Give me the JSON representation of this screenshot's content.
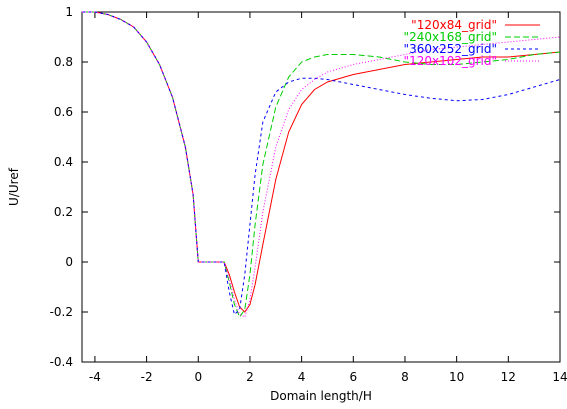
{
  "chart_data": {
    "type": "line",
    "xlabel": "Domain length/H",
    "ylabel": "U/Uref",
    "xlim": [
      -4.5,
      14
    ],
    "ylim": [
      -0.4,
      1
    ],
    "xticks": [
      -4,
      -2,
      0,
      2,
      4,
      6,
      8,
      10,
      12,
      14
    ],
    "yticks": [
      -0.4,
      -0.2,
      0,
      0.2,
      0.4,
      0.6,
      0.8,
      1
    ],
    "xtick_labels": [
      "-4",
      "-2",
      "0",
      "2",
      "4",
      "6",
      "8",
      "10",
      "12",
      "14"
    ],
    "ytick_labels": [
      "-0.4",
      "-0.2",
      "0",
      "0.2",
      "0.4",
      "0.6",
      "0.8",
      "1"
    ],
    "grid": false,
    "legend_position": "top-right",
    "series": [
      {
        "name": "\"120x84_grid\"",
        "color": "#ff0000",
        "dash": "solid",
        "x": [
          -4.5,
          -4,
          -3.5,
          -3,
          -2.5,
          -2,
          -1.5,
          -1,
          -0.5,
          -0.2,
          0,
          1,
          1.2,
          1.4,
          1.6,
          1.8,
          2.0,
          2.2,
          2.5,
          3,
          3.5,
          4,
          4.5,
          5,
          6,
          7,
          8,
          9,
          10,
          11,
          12,
          13,
          14
        ],
        "y": [
          1.0,
          1.0,
          0.99,
          0.97,
          0.94,
          0.88,
          0.79,
          0.66,
          0.46,
          0.27,
          0.0,
          0.0,
          -0.05,
          -0.12,
          -0.18,
          -0.2,
          -0.17,
          -0.09,
          0.07,
          0.33,
          0.52,
          0.63,
          0.69,
          0.72,
          0.75,
          0.77,
          0.79,
          0.8,
          0.81,
          0.82,
          0.82,
          0.83,
          0.84
        ]
      },
      {
        "name": "\"240x168_grid\"",
        "color": "#00cc00",
        "dash": "long",
        "x": [
          -4.5,
          -4,
          -3.5,
          -3,
          -2.5,
          -2,
          -1.5,
          -1,
          -0.5,
          -0.2,
          0,
          1,
          1.2,
          1.4,
          1.6,
          1.8,
          2.0,
          2.2,
          2.5,
          3,
          3.5,
          4,
          4.5,
          5,
          6,
          7,
          8,
          9,
          10,
          11,
          12,
          13,
          14
        ],
        "y": [
          1.0,
          1.0,
          0.99,
          0.97,
          0.94,
          0.88,
          0.79,
          0.66,
          0.46,
          0.27,
          0.0,
          0.0,
          -0.08,
          -0.17,
          -0.22,
          -0.19,
          -0.05,
          0.15,
          0.39,
          0.62,
          0.74,
          0.8,
          0.82,
          0.83,
          0.83,
          0.82,
          0.8,
          0.79,
          0.79,
          0.8,
          0.81,
          0.83,
          0.84
        ]
      },
      {
        "name": "\"360x252_grid\"",
        "color": "#0000ff",
        "dash": "short",
        "x": [
          -4.5,
          -4,
          -3.5,
          -3,
          -2.5,
          -2,
          -1.5,
          -1,
          -0.5,
          -0.2,
          0,
          1,
          1.2,
          1.4,
          1.6,
          1.8,
          2.0,
          2.2,
          2.5,
          3,
          3.5,
          4,
          4.5,
          5,
          6,
          7,
          8,
          9,
          10,
          11,
          12,
          13,
          14
        ],
        "y": [
          1.0,
          1.0,
          0.99,
          0.97,
          0.94,
          0.88,
          0.79,
          0.66,
          0.46,
          0.27,
          0.0,
          0.0,
          -0.12,
          -0.21,
          -0.19,
          -0.05,
          0.15,
          0.35,
          0.56,
          0.68,
          0.72,
          0.735,
          0.735,
          0.73,
          0.71,
          0.69,
          0.67,
          0.655,
          0.645,
          0.65,
          0.67,
          0.7,
          0.73
        ]
      },
      {
        "name": "\"120x102_grid\"",
        "color": "#ff00ff",
        "dash": "dotted",
        "x": [
          -4.5,
          -4,
          -3.5,
          -3,
          -2.5,
          -2,
          -1.5,
          -1,
          -0.5,
          -0.2,
          0,
          1,
          1.2,
          1.4,
          1.6,
          1.8,
          2.0,
          2.2,
          2.5,
          3,
          3.5,
          4,
          4.5,
          5,
          6,
          7,
          8,
          9,
          10,
          11,
          12,
          13,
          14
        ],
        "y": [
          1.0,
          1.0,
          0.99,
          0.97,
          0.94,
          0.88,
          0.79,
          0.66,
          0.46,
          0.27,
          0.0,
          0.0,
          -0.07,
          -0.15,
          -0.21,
          -0.22,
          -0.15,
          -0.02,
          0.2,
          0.46,
          0.61,
          0.69,
          0.73,
          0.76,
          0.79,
          0.81,
          0.83,
          0.85,
          0.86,
          0.87,
          0.88,
          0.89,
          0.9
        ]
      }
    ]
  }
}
